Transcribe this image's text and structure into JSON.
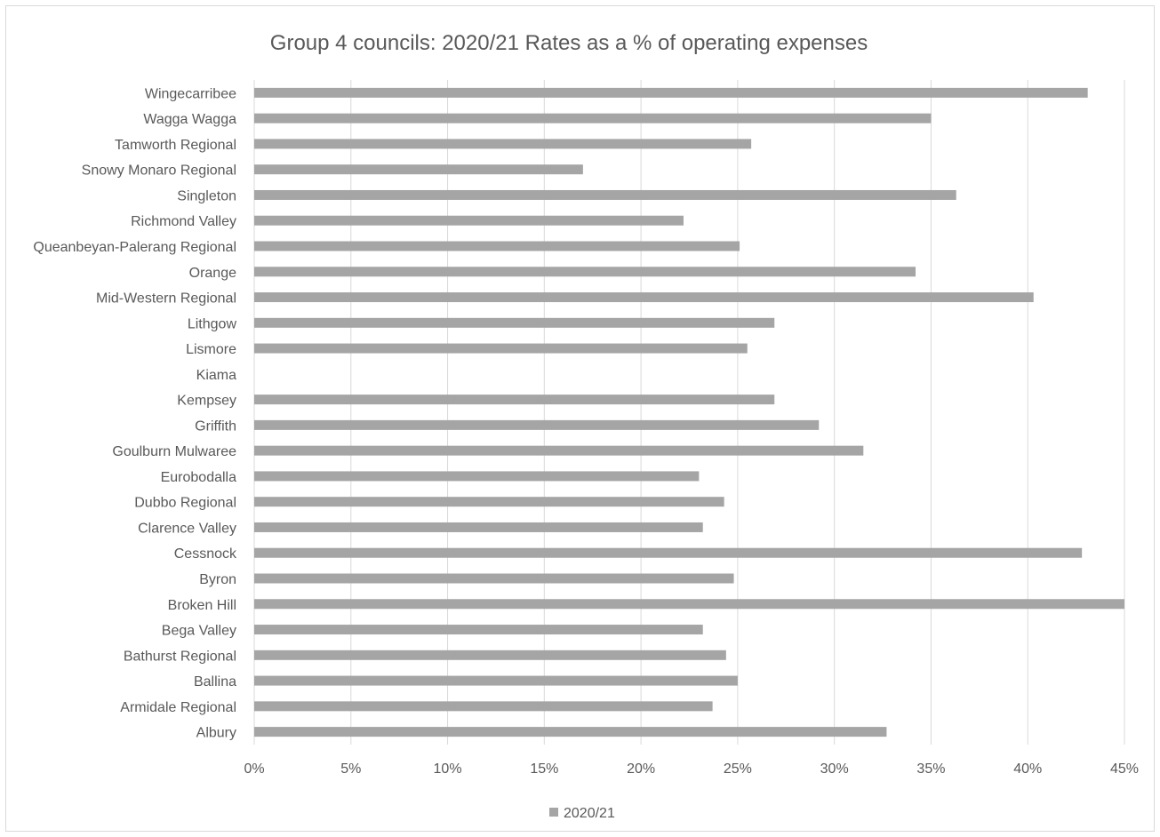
{
  "chart_data": {
    "type": "bar",
    "orientation": "horizontal",
    "title": "Group 4 councils: 2020/21 Rates as a % of operating expenses",
    "xlabel": "",
    "ylabel": "",
    "categories": [
      "Wingecarribee",
      "Wagga Wagga",
      "Tamworth Regional",
      "Snowy Monaro Regional",
      "Singleton",
      "Richmond Valley",
      "Queanbeyan-Palerang Regional",
      "Orange",
      "Mid-Western Regional",
      "Lithgow",
      "Lismore",
      "Kiama",
      "Kempsey",
      "Griffith",
      "Goulburn Mulwaree",
      "Eurobodalla",
      "Dubbo Regional",
      "Clarence Valley",
      "Cessnock",
      "Byron",
      "Broken Hill",
      "Bega Valley",
      "Bathurst Regional",
      "Ballina",
      "Armidale Regional",
      "Albury"
    ],
    "series": [
      {
        "name": "2020/21",
        "color": "#a5a5a5",
        "values": [
          43.1,
          35.0,
          25.7,
          17.0,
          36.3,
          22.2,
          25.1,
          34.2,
          40.3,
          26.9,
          25.5,
          0,
          26.9,
          29.2,
          31.5,
          23.0,
          24.3,
          23.2,
          42.8,
          24.8,
          45.0,
          23.2,
          24.4,
          25.0,
          23.7,
          32.7
        ]
      }
    ],
    "xlim": [
      0,
      45
    ],
    "xticks": [
      0,
      5,
      10,
      15,
      20,
      25,
      30,
      35,
      40,
      45
    ],
    "tick_suffix": "%",
    "grid": true,
    "legend_position": "bottom"
  }
}
